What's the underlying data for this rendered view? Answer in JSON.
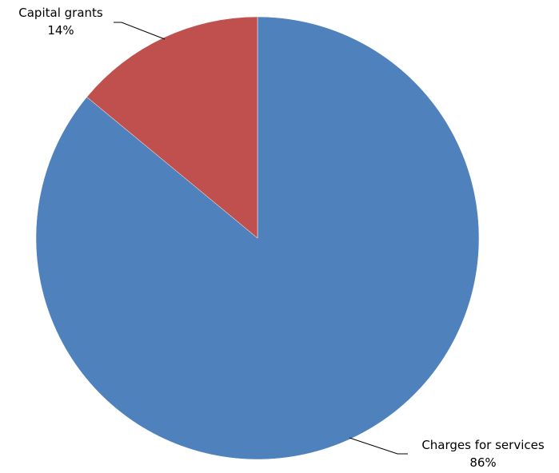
{
  "chart_data": {
    "type": "pie",
    "title": "",
    "slices": [
      {
        "label": "Charges for services",
        "value": 86,
        "value_label": "86%",
        "color": "#4F81BD"
      },
      {
        "label": "Capital grants",
        "value": 14,
        "value_label": "14%",
        "color": "#C0504D"
      }
    ],
    "start_angle": "12 o'clock",
    "direction": "clockwise",
    "legend": "none",
    "data_labels": "outside-with-leader-lines"
  }
}
